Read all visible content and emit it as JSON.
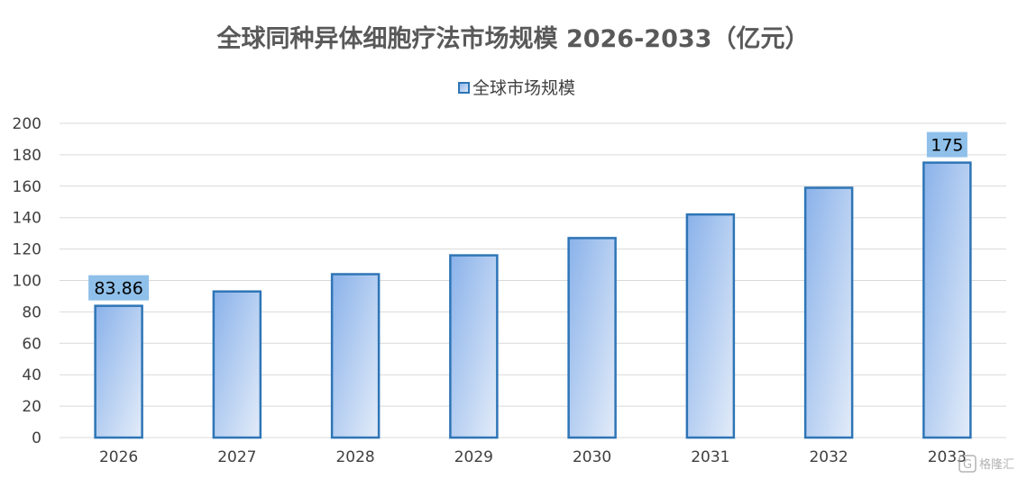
{
  "chart_data": {
    "type": "bar",
    "title": "全球同种异体细胞疗法市场规模 2026-2033（亿元）",
    "categories": [
      "2026",
      "2027",
      "2028",
      "2029",
      "2030",
      "2031",
      "2032",
      "2033"
    ],
    "series": [
      {
        "name": "全球市场规模",
        "values": [
          83.86,
          93,
          104,
          116,
          127,
          142,
          159,
          175
        ]
      }
    ],
    "data_labels": [
      {
        "category": "2026",
        "text": "83.86"
      },
      {
        "category": "2033",
        "text": "175"
      }
    ],
    "ylim": [
      0,
      200
    ],
    "y_ticks": [
      "0",
      "20",
      "40",
      "60",
      "80",
      "100",
      "120",
      "140",
      "160",
      "180",
      "200"
    ],
    "xlabel": "",
    "ylabel": "",
    "grid": true,
    "legend_position": "top"
  },
  "colors": {
    "bar_fill_dark": "#8ab2ea",
    "bar_fill_light": "#e3ecf9",
    "bar_stroke": "#2e75b6",
    "label_bg": "#8fc0ea",
    "grid": "#d9d9d9"
  },
  "watermark": {
    "icon": "gelonghui-logo-icon",
    "text": "格隆汇"
  }
}
